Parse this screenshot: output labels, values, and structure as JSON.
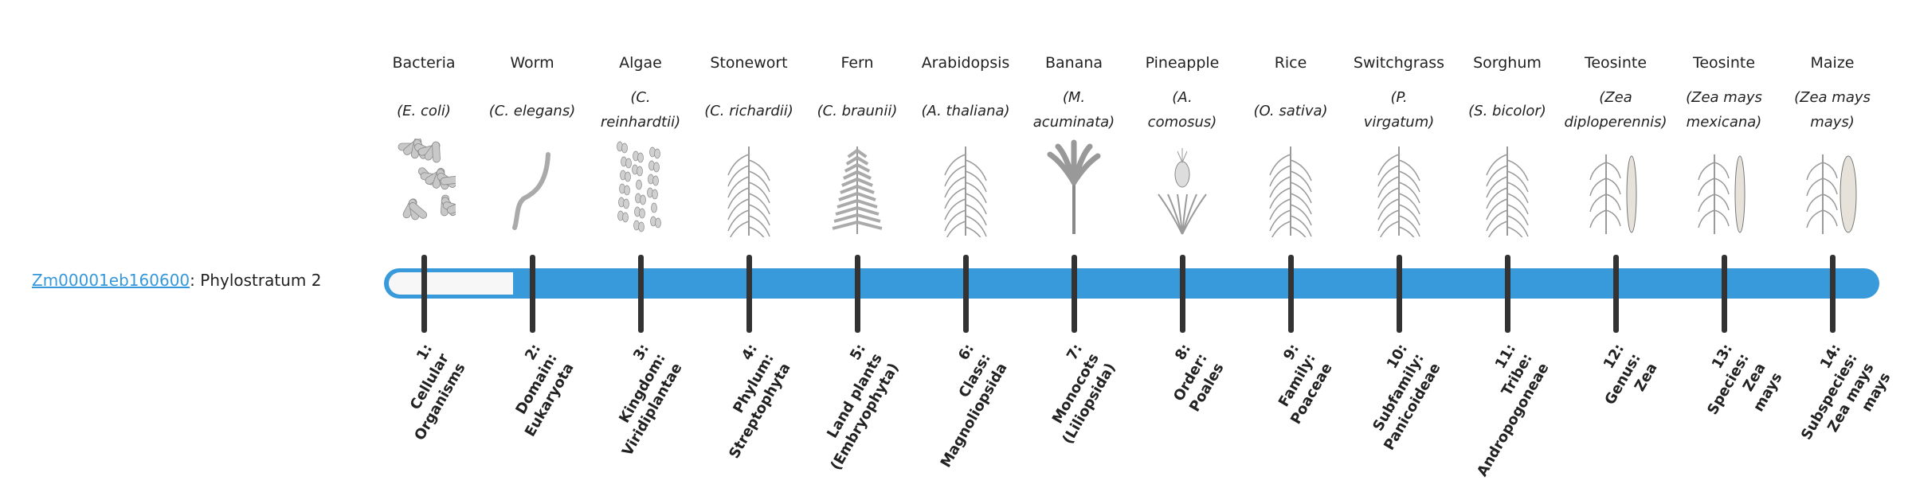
{
  "gene": {
    "id": "Zm00001eb160600",
    "suffix": ": Phylostratum 2"
  },
  "colors": {
    "bar": "#3899db",
    "link": "#3498db",
    "tick": "#333333",
    "fill": "#f7f7f7"
  },
  "progress": {
    "phylostratum": 2,
    "total": 14
  },
  "columns": [
    {
      "common": "Bacteria",
      "sci": [
        "(E. coli)"
      ],
      "label": [
        "1:",
        "Cellular",
        "Organisms"
      ],
      "icon": "bacteria-icon"
    },
    {
      "common": "Worm",
      "sci": [
        "(C. elegans)"
      ],
      "label": [
        "2:",
        "Domain:",
        "Eukaryota"
      ],
      "icon": "worm-icon"
    },
    {
      "common": "Algae",
      "sci": [
        "(C.",
        "reinhardtii)"
      ],
      "label": [
        "3:",
        "Kingdom:",
        "Viridiplantae"
      ],
      "icon": "algae-icon"
    },
    {
      "common": "Stonewort",
      "sci": [
        "(C. richardii)"
      ],
      "label": [
        "4:",
        "Phylum:",
        "Streptophyta"
      ],
      "icon": "stonewort-icon"
    },
    {
      "common": "Fern",
      "sci": [
        "(C. braunii)"
      ],
      "label": [
        "5:",
        "Land plants",
        "(Embryophyta)"
      ],
      "icon": "fern-icon"
    },
    {
      "common": "Arabidopsis",
      "sci": [
        "(A. thaliana)"
      ],
      "label": [
        "6:",
        "Class:",
        "Magnoliopsida"
      ],
      "icon": "arabidopsis-icon"
    },
    {
      "common": "Banana",
      "sci": [
        "(M.",
        "acuminata)"
      ],
      "label": [
        "7:",
        "Monocots",
        "(Liliopsida)"
      ],
      "icon": "banana-icon"
    },
    {
      "common": "Pineapple",
      "sci": [
        "(A.",
        "comosus)"
      ],
      "label": [
        "8:",
        "Order:",
        "Poales"
      ],
      "icon": "pineapple-icon"
    },
    {
      "common": "Rice",
      "sci": [
        "(O. sativa)"
      ],
      "label": [
        "9:",
        "Family:",
        "Poaceae"
      ],
      "icon": "rice-icon"
    },
    {
      "common": "Switchgrass",
      "sci": [
        "(P.",
        "virgatum)"
      ],
      "label": [
        "10:",
        "Subfamily:",
        "Panicoideae"
      ],
      "icon": "switchgrass-icon"
    },
    {
      "common": "Sorghum",
      "sci": [
        "(S. bicolor)"
      ],
      "label": [
        "11:",
        "Tribe:",
        "Andropogoneae"
      ],
      "icon": "sorghum-icon"
    },
    {
      "common": "Teosinte",
      "sci": [
        "(Zea",
        "diploperennis)"
      ],
      "label": [
        "12:",
        "Genus:",
        "Zea"
      ],
      "icon": "teosinte-icon"
    },
    {
      "common": "Teosinte",
      "sci": [
        "(Zea mays",
        "mexicana)"
      ],
      "label": [
        "13:",
        "Species:",
        "Zea",
        "mays"
      ],
      "icon": "teosinte-mexicana-icon"
    },
    {
      "common": "Maize",
      "sci": [
        "(Zea mays",
        "mays)"
      ],
      "label": [
        "14:",
        "Subspecies:",
        "Zea mays",
        "mays"
      ],
      "icon": "maize-icon"
    }
  ]
}
